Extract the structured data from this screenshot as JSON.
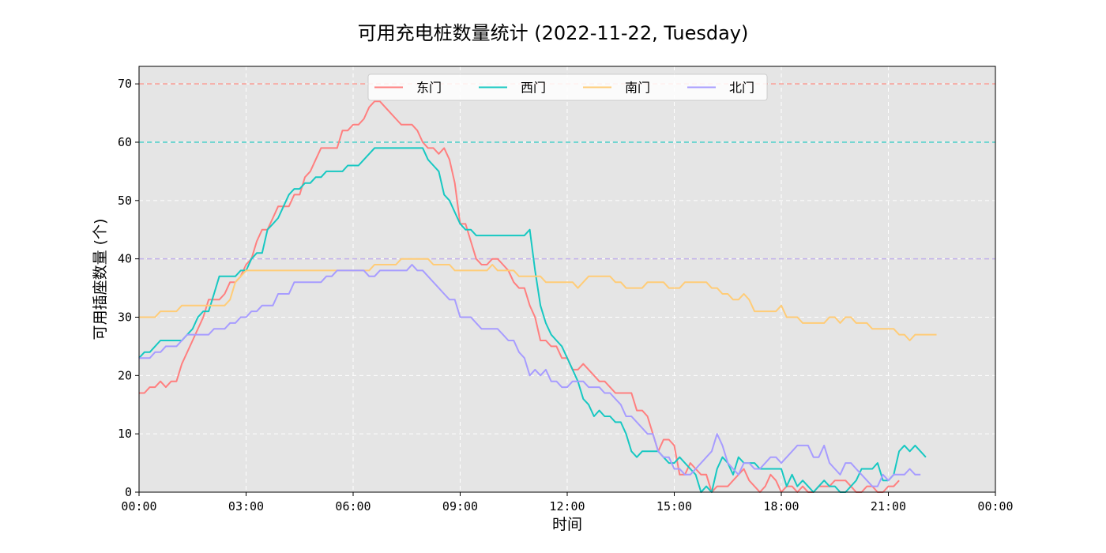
{
  "chart_data": {
    "type": "line",
    "title": "可用充电桩数量统计 (2022-11-22, Tuesday)",
    "xlabel": "时间",
    "ylabel": "可用插座数量 (个)",
    "xlim": [
      0,
      24
    ],
    "ylim": [
      0,
      73
    ],
    "x_ticks": [
      0,
      3,
      6,
      9,
      12,
      15,
      18,
      21,
      24
    ],
    "x_tick_labels": [
      "00:00",
      "03:00",
      "06:00",
      "09:00",
      "12:00",
      "15:00",
      "18:00",
      "21:00",
      "00:00"
    ],
    "y_ticks": [
      0,
      10,
      20,
      30,
      40,
      50,
      60,
      70
    ],
    "y_tick_labels": [
      "0",
      "10",
      "20",
      "30",
      "40",
      "50",
      "60",
      "70"
    ],
    "grid": true,
    "legend_position": "top-center",
    "background_color": "#e5e5e5",
    "sample_interval_hours": 0.15,
    "capacity_lines": [
      {
        "series": "东门",
        "value": 70,
        "color": "#ff8a80"
      },
      {
        "series": "西门",
        "value": 60,
        "color": "#33ccc5"
      },
      {
        "series": "南门",
        "value": 40,
        "color": "#ffd68a"
      },
      {
        "series": "北门",
        "value": 40,
        "color": "#b5aaff"
      }
    ],
    "series": [
      {
        "name": "东门",
        "color": "#ff7f7f",
        "values": [
          17,
          17,
          18,
          18,
          19,
          18,
          19,
          19,
          22,
          24,
          26,
          28,
          30,
          33,
          33,
          33,
          34,
          36,
          36,
          37,
          39,
          40,
          43,
          45,
          45,
          47,
          49,
          49,
          49,
          51,
          51,
          54,
          55,
          57,
          59,
          59,
          59,
          59,
          62,
          62,
          63,
          63,
          64,
          66,
          67,
          67,
          66,
          65,
          64,
          63,
          63,
          63,
          62,
          60,
          59,
          59,
          58,
          59,
          57,
          53,
          46,
          46,
          43,
          40,
          39,
          39,
          40,
          40,
          39,
          38,
          36,
          35,
          35,
          32,
          30,
          26,
          26,
          25,
          25,
          23,
          23,
          21,
          21,
          22,
          21,
          20,
          19,
          19,
          18,
          17,
          17,
          17,
          17,
          14,
          14,
          13,
          10,
          7,
          9,
          9,
          8,
          3,
          3,
          5,
          4,
          3,
          3,
          0,
          1,
          1,
          1,
          2,
          3,
          4,
          2,
          1,
          0,
          1,
          3,
          2,
          0,
          1,
          1,
          0,
          1,
          0,
          0,
          1,
          1,
          1,
          2,
          2,
          2,
          1,
          0,
          0,
          1,
          1,
          0,
          0,
          1,
          1,
          2
        ]
      },
      {
        "name": "西门",
        "color": "#17c8c2",
        "values": [
          23,
          24,
          24,
          25,
          26,
          26,
          26,
          26,
          26,
          27,
          28,
          30,
          31,
          31,
          34,
          37,
          37,
          37,
          37,
          38,
          38,
          40,
          41,
          41,
          45,
          46,
          47,
          49,
          51,
          52,
          52,
          53,
          53,
          54,
          54,
          55,
          55,
          55,
          55,
          56,
          56,
          56,
          57,
          58,
          59,
          59,
          59,
          59,
          59,
          59,
          59,
          59,
          59,
          59,
          57,
          56,
          55,
          51,
          50,
          48,
          46,
          45,
          45,
          44,
          44,
          44,
          44,
          44,
          44,
          44,
          44,
          44,
          44,
          45,
          38,
          32,
          29,
          27,
          26,
          25,
          23,
          21,
          19,
          16,
          15,
          13,
          14,
          13,
          13,
          12,
          12,
          10,
          7,
          6,
          7,
          7,
          7,
          7,
          6,
          5,
          5,
          6,
          5,
          4,
          3,
          0,
          1,
          0,
          4,
          6,
          5,
          3,
          6,
          5,
          5,
          5,
          4,
          4,
          4,
          4,
          4,
          1,
          3,
          1,
          2,
          1,
          0,
          1,
          2,
          1,
          1,
          0,
          0,
          1,
          2,
          4,
          4,
          4,
          5,
          2,
          2,
          3,
          7,
          8,
          7,
          8,
          7,
          6
        ]
      },
      {
        "name": "南门",
        "color": "#ffcc77",
        "values": [
          30,
          30,
          30,
          30,
          31,
          31,
          31,
          31,
          32,
          32,
          32,
          32,
          32,
          32,
          32,
          32,
          32,
          33,
          36,
          37,
          38,
          38,
          38,
          38,
          38,
          38,
          38,
          38,
          38,
          38,
          38,
          38,
          38,
          38,
          38,
          38,
          38,
          38,
          38,
          38,
          38,
          38,
          38,
          38,
          39,
          39,
          39,
          39,
          39,
          40,
          40,
          40,
          40,
          40,
          40,
          39,
          39,
          39,
          39,
          38,
          38,
          38,
          38,
          38,
          38,
          38,
          39,
          38,
          38,
          38,
          38,
          37,
          37,
          37,
          37,
          37,
          36,
          36,
          36,
          36,
          36,
          36,
          35,
          36,
          37,
          37,
          37,
          37,
          37,
          36,
          36,
          35,
          35,
          35,
          35,
          36,
          36,
          36,
          36,
          35,
          35,
          35,
          36,
          36,
          36,
          36,
          36,
          35,
          35,
          34,
          34,
          33,
          33,
          34,
          33,
          31,
          31,
          31,
          31,
          31,
          32,
          30,
          30,
          30,
          29,
          29,
          29,
          29,
          29,
          30,
          30,
          29,
          30,
          30,
          29,
          29,
          29,
          28,
          28,
          28,
          28,
          28,
          27,
          27,
          26,
          27,
          27,
          27,
          27,
          27
        ]
      },
      {
        "name": "北门",
        "color": "#a79cff",
        "values": [
          23,
          23,
          23,
          24,
          24,
          25,
          25,
          25,
          26,
          27,
          27,
          27,
          27,
          27,
          28,
          28,
          28,
          29,
          29,
          30,
          30,
          31,
          31,
          32,
          32,
          32,
          34,
          34,
          34,
          36,
          36,
          36,
          36,
          36,
          36,
          37,
          37,
          38,
          38,
          38,
          38,
          38,
          38,
          37,
          37,
          38,
          38,
          38,
          38,
          38,
          38,
          39,
          38,
          38,
          37,
          36,
          35,
          34,
          33,
          33,
          30,
          30,
          30,
          29,
          28,
          28,
          28,
          28,
          27,
          26,
          26,
          24,
          23,
          20,
          21,
          20,
          21,
          19,
          19,
          18,
          18,
          19,
          19,
          19,
          18,
          18,
          18,
          17,
          17,
          16,
          15,
          13,
          13,
          12,
          11,
          10,
          10,
          7,
          6,
          6,
          4,
          4,
          3,
          3,
          4,
          5,
          6,
          7,
          10,
          8,
          5,
          4,
          3,
          5,
          5,
          4,
          4,
          5,
          6,
          6,
          5,
          6,
          7,
          8,
          8,
          8,
          6,
          6,
          8,
          5,
          4,
          3,
          5,
          5,
          4,
          3,
          2,
          1,
          1,
          3,
          2,
          3,
          3,
          3,
          4,
          3,
          3
        ]
      }
    ]
  }
}
